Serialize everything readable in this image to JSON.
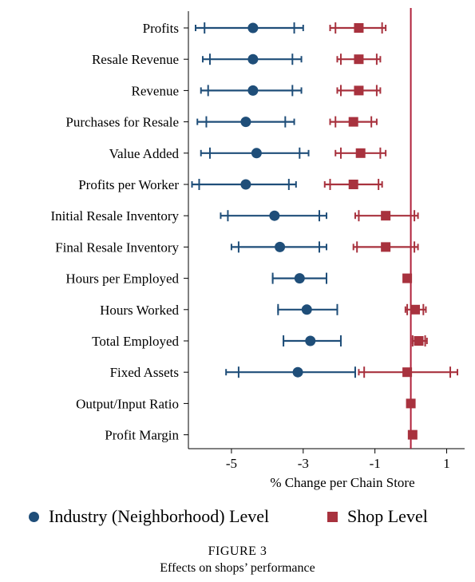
{
  "chart_data": {
    "type": "scatter",
    "xlabel": "% Change per Chain Store",
    "xticks": [
      -5,
      -3,
      -1,
      1
    ],
    "xlim": [
      -6.2,
      1.5
    ],
    "reference_line_x": 0,
    "categories": [
      "Profits",
      "Resale Revenue",
      "Revenue",
      "Purchases for Resale",
      "Value Added",
      "Profits per Worker",
      "Initial Resale Inventory",
      "Final Resale Inventory",
      "Hours per Employed",
      "Hours Worked",
      "Total Employed",
      "Fixed Assets",
      "Output/Input Ratio",
      "Profit Margin"
    ],
    "series": [
      {
        "name": "Industry (Neighborhood) Level",
        "color": "#1f4e79",
        "marker": "circle",
        "values": [
          -4.4,
          -4.4,
          -4.4,
          -4.6,
          -4.3,
          -4.6,
          -3.8,
          -3.65,
          -3.1,
          -2.9,
          -2.8,
          -3.15,
          null,
          null
        ],
        "ci90_low": [
          -5.75,
          -5.6,
          -5.65,
          -5.7,
          -5.6,
          -5.9,
          -5.1,
          -4.8,
          -3.85,
          -3.7,
          -3.55,
          -4.8,
          null,
          null
        ],
        "ci90_high": [
          -3.25,
          -3.3,
          -3.3,
          -3.5,
          -3.1,
          -3.4,
          -2.55,
          -2.55,
          -2.35,
          -2.05,
          -1.95,
          -1.55,
          null,
          null
        ],
        "ci95_low": [
          -6.0,
          -5.8,
          -5.85,
          -5.95,
          -5.85,
          -6.1,
          -5.3,
          -5.0,
          -3.85,
          -3.7,
          -3.55,
          -5.15,
          null,
          null
        ],
        "ci95_high": [
          -3.0,
          -3.05,
          -3.05,
          -3.25,
          -2.85,
          -3.2,
          -2.35,
          -2.35,
          -2.35,
          -2.05,
          -1.95,
          -1.55,
          null,
          null
        ]
      },
      {
        "name": "Shop Level",
        "color": "#a8323e",
        "marker": "square",
        "values": [
          -1.45,
          -1.45,
          -1.45,
          -1.6,
          -1.4,
          -1.6,
          -0.7,
          -0.7,
          -0.1,
          0.12,
          0.22,
          -0.1,
          0.0,
          0.05
        ],
        "ci90_low": [
          -2.1,
          -1.95,
          -1.95,
          -2.1,
          -1.95,
          -2.25,
          -1.45,
          -1.5,
          -0.1,
          -0.1,
          0.05,
          -1.3,
          0.0,
          0.05
        ],
        "ci90_high": [
          -0.8,
          -0.95,
          -0.95,
          -1.1,
          -0.85,
          -0.9,
          0.1,
          0.1,
          -0.1,
          0.35,
          0.4,
          1.1,
          0.0,
          0.05
        ],
        "ci95_low": [
          -2.25,
          -2.05,
          -2.05,
          -2.25,
          -2.1,
          -2.4,
          -1.55,
          -1.6,
          -0.1,
          -0.15,
          0.05,
          -1.45,
          0.0,
          0.05
        ],
        "ci95_high": [
          -0.7,
          -0.85,
          -0.85,
          -0.95,
          -0.7,
          -0.8,
          0.2,
          0.2,
          -0.1,
          0.42,
          0.45,
          1.3,
          0.0,
          0.05
        ]
      }
    ]
  },
  "legend": {
    "industry_label": "Industry (Neighborhood) Level",
    "shop_label": "Shop Level"
  },
  "caption": {
    "figure_number": "FIGURE 3",
    "title": "Effects on shops’ performance"
  }
}
